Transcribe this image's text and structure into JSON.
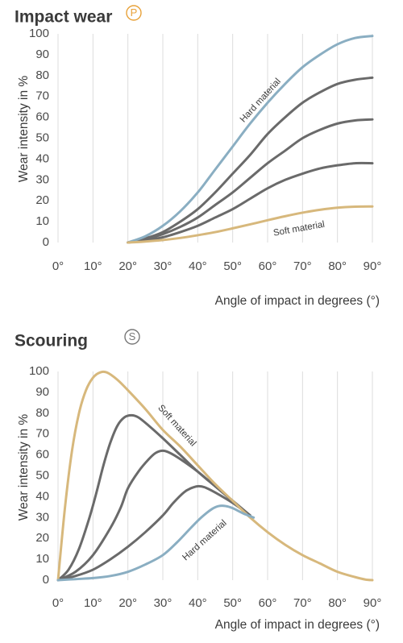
{
  "colors": {
    "hard": "#8aaec2",
    "soft": "#d7b87c",
    "mid": "#6a6a6a",
    "badge_impact": "#e8a23a",
    "badge_scouring": "#777777"
  },
  "chart_data": [
    {
      "type": "line",
      "title": "Impact wear",
      "badge": "P",
      "xlabel": "Angle of impact in degrees (°)",
      "ylabel": "Wear intensity in %",
      "xlim": [
        0,
        90
      ],
      "ylim": [
        0,
        100
      ],
      "x_ticks": [
        "0°",
        "10°",
        "20°",
        "30°",
        "40°",
        "50°",
        "60°",
        "70°",
        "80°",
        "90°"
      ],
      "y_ticks": [
        "0",
        "10",
        "20",
        "30",
        "40",
        "50",
        "60",
        "70",
        "80",
        "90",
        "100"
      ],
      "grid": "vertical",
      "series": [
        {
          "name": "Hard material",
          "role": "hard",
          "x": [
            20,
            25,
            30,
            35,
            40,
            45,
            50,
            55,
            60,
            65,
            70,
            75,
            80,
            85,
            90
          ],
          "y": [
            0,
            3,
            8,
            15,
            24,
            35,
            46,
            57,
            67,
            76,
            84,
            90,
            95,
            98,
            99
          ]
        },
        {
          "role": "mid",
          "x": [
            20,
            25,
            30,
            35,
            40,
            45,
            50,
            55,
            60,
            65,
            70,
            75,
            80,
            85,
            90
          ],
          "y": [
            0,
            2,
            5,
            10,
            16,
            24,
            33,
            42,
            52,
            60,
            67,
            72,
            76,
            78,
            79
          ]
        },
        {
          "role": "mid",
          "x": [
            20,
            25,
            30,
            35,
            40,
            45,
            50,
            55,
            60,
            65,
            70,
            75,
            80,
            85,
            90
          ],
          "y": [
            0,
            1.5,
            4,
            7.5,
            12,
            18,
            24,
            31,
            38,
            44,
            50,
            54,
            57,
            58.5,
            59
          ]
        },
        {
          "role": "mid",
          "x": [
            20,
            25,
            30,
            35,
            40,
            45,
            50,
            55,
            60,
            65,
            70,
            75,
            80,
            85,
            90
          ],
          "y": [
            0,
            1,
            2.5,
            5,
            8,
            12,
            16,
            21,
            26,
            30,
            33,
            35.5,
            37,
            38,
            38
          ]
        },
        {
          "name": "Soft material",
          "role": "soft",
          "x": [
            20,
            25,
            30,
            35,
            40,
            45,
            50,
            55,
            60,
            65,
            70,
            75,
            80,
            85,
            90
          ],
          "y": [
            0,
            0.5,
            1.2,
            2.2,
            3.5,
            5,
            6.8,
            8.7,
            10.7,
            12.6,
            14.3,
            15.7,
            16.7,
            17.2,
            17.3
          ]
        }
      ],
      "annotations": [
        {
          "text": "Hard material",
          "x": 58,
          "y": 68,
          "angle": -48
        },
        {
          "text": "Soft material",
          "x": 69,
          "y": 6.5,
          "angle": -10
        }
      ]
    },
    {
      "type": "line",
      "title": "Scouring",
      "badge": "S",
      "xlabel": "Angle of impact in degrees (°)",
      "ylabel": "Wear intensity in %",
      "xlim": [
        0,
        90
      ],
      "ylim": [
        0,
        100
      ],
      "x_ticks": [
        "0°",
        "10°",
        "20°",
        "30°",
        "40°",
        "50°",
        "60°",
        "70°",
        "80°",
        "90°"
      ],
      "y_ticks": [
        "0",
        "10",
        "20",
        "30",
        "40",
        "50",
        "60",
        "70",
        "80",
        "90",
        "100"
      ],
      "grid": "vertical",
      "series": [
        {
          "name": "Soft material",
          "role": "soft",
          "x": [
            0,
            2,
            4,
            6,
            8,
            10,
            12,
            14,
            17,
            20,
            25,
            30,
            35,
            40,
            45,
            50,
            55,
            60,
            65,
            70,
            75,
            80,
            85,
            88,
            90
          ],
          "y": [
            0,
            35,
            62,
            80,
            91,
            97,
            99.5,
            99.5,
            96,
            91,
            82,
            72,
            64,
            55,
            46,
            38,
            30,
            23,
            17,
            12,
            8,
            4,
            1.5,
            0.3,
            0
          ]
        },
        {
          "role": "mid",
          "x": [
            0,
            3,
            6,
            9,
            11,
            13,
            15,
            17,
            19,
            21,
            23,
            26,
            30,
            35,
            40,
            45,
            50,
            55
          ],
          "y": [
            0,
            5,
            15,
            30,
            42,
            55,
            66,
            74,
            78,
            79,
            78,
            74,
            68,
            60,
            52,
            45,
            38,
            31
          ]
        },
        {
          "role": "mid",
          "x": [
            0,
            5,
            10,
            15,
            18,
            20,
            23,
            26,
            28,
            30,
            32,
            35,
            40,
            45,
            50,
            55
          ],
          "y": [
            0,
            4,
            12,
            25,
            35,
            44,
            52,
            58,
            61,
            62,
            61,
            58,
            52,
            45,
            38,
            31
          ]
        },
        {
          "role": "mid",
          "x": [
            0,
            5,
            10,
            15,
            20,
            25,
            30,
            33,
            36,
            38,
            40,
            42,
            45,
            50,
            55
          ],
          "y": [
            0,
            2,
            5,
            10,
            16,
            23,
            31,
            37,
            42,
            44,
            45,
            44.5,
            42,
            37,
            31
          ]
        },
        {
          "name": "Hard material",
          "role": "hard",
          "x": [
            0,
            5,
            10,
            15,
            20,
            25,
            30,
            34,
            38,
            41,
            44,
            46,
            48,
            50,
            53,
            56
          ],
          "y": [
            0,
            0.5,
            1,
            2,
            4,
            7.5,
            12,
            18,
            25,
            30,
            34,
            35.5,
            35.5,
            34.5,
            32,
            30
          ]
        }
      ],
      "annotations": [
        {
          "text": "Soft material",
          "x": 34,
          "y": 74,
          "angle": 48
        },
        {
          "text": "Hard material",
          "x": 42,
          "y": 19,
          "angle": -42
        }
      ]
    }
  ]
}
